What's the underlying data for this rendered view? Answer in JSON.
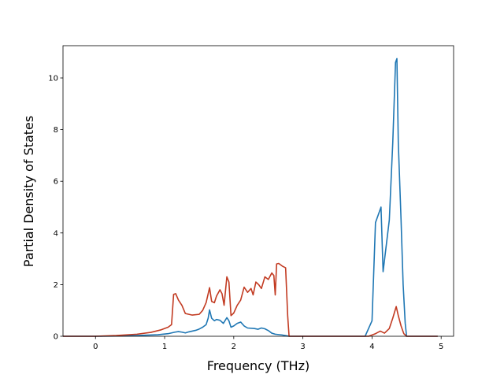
{
  "chart_data": {
    "type": "line",
    "title": "",
    "xlabel": "Frequency (THz)",
    "ylabel": "Partial Density of States",
    "xlim": [
      -0.47,
      5.18
    ],
    "ylim": [
      0,
      11.25
    ],
    "xticks": [
      0,
      1,
      2,
      3,
      4,
      5
    ],
    "yticks": [
      0,
      2,
      4,
      6,
      8,
      10
    ],
    "grid": false,
    "legend": "none",
    "series": [
      {
        "color": "#1f77b4",
        "points": [
          [
            -0.47,
            0
          ],
          [
            0.0,
            0
          ],
          [
            0.3,
            0.01
          ],
          [
            0.6,
            0.03
          ],
          [
            0.9,
            0.06
          ],
          [
            1.05,
            0.1
          ],
          [
            1.1,
            0.13
          ],
          [
            1.15,
            0.16
          ],
          [
            1.2,
            0.18
          ],
          [
            1.25,
            0.16
          ],
          [
            1.3,
            0.13
          ],
          [
            1.35,
            0.17
          ],
          [
            1.4,
            0.2
          ],
          [
            1.45,
            0.23
          ],
          [
            1.5,
            0.28
          ],
          [
            1.55,
            0.35
          ],
          [
            1.6,
            0.45
          ],
          [
            1.63,
            0.7
          ],
          [
            1.65,
            1.02
          ],
          [
            1.68,
            0.7
          ],
          [
            1.72,
            0.6
          ],
          [
            1.75,
            0.65
          ],
          [
            1.8,
            0.62
          ],
          [
            1.85,
            0.5
          ],
          [
            1.9,
            0.72
          ],
          [
            1.93,
            0.6
          ],
          [
            1.96,
            0.35
          ],
          [
            2.0,
            0.4
          ],
          [
            2.05,
            0.5
          ],
          [
            2.1,
            0.55
          ],
          [
            2.15,
            0.4
          ],
          [
            2.2,
            0.32
          ],
          [
            2.3,
            0.3
          ],
          [
            2.35,
            0.27
          ],
          [
            2.4,
            0.32
          ],
          [
            2.45,
            0.29
          ],
          [
            2.5,
            0.22
          ],
          [
            2.55,
            0.12
          ],
          [
            2.6,
            0.08
          ],
          [
            2.7,
            0.05
          ],
          [
            2.78,
            0.01
          ],
          [
            2.8,
            0
          ],
          [
            3.5,
            0
          ],
          [
            3.9,
            0
          ],
          [
            4.0,
            0.6
          ],
          [
            4.05,
            4.4
          ],
          [
            4.13,
            5.0
          ],
          [
            4.16,
            2.5
          ],
          [
            4.25,
            4.5
          ],
          [
            4.3,
            7.5
          ],
          [
            4.34,
            10.6
          ],
          [
            4.36,
            10.75
          ],
          [
            4.38,
            7.5
          ],
          [
            4.42,
            4.5
          ],
          [
            4.45,
            2.0
          ],
          [
            4.48,
            0.5
          ],
          [
            4.5,
            0
          ],
          [
            4.95,
            0
          ]
        ]
      },
      {
        "color": "#c23b22",
        "points": [
          [
            -0.47,
            0
          ],
          [
            0.0,
            0
          ],
          [
            0.3,
            0.03
          ],
          [
            0.6,
            0.08
          ],
          [
            0.8,
            0.15
          ],
          [
            0.95,
            0.25
          ],
          [
            1.05,
            0.35
          ],
          [
            1.1,
            0.45
          ],
          [
            1.13,
            1.62
          ],
          [
            1.16,
            1.65
          ],
          [
            1.2,
            1.4
          ],
          [
            1.25,
            1.2
          ],
          [
            1.3,
            0.88
          ],
          [
            1.4,
            0.82
          ],
          [
            1.5,
            0.85
          ],
          [
            1.55,
            1.0
          ],
          [
            1.6,
            1.3
          ],
          [
            1.65,
            1.88
          ],
          [
            1.68,
            1.35
          ],
          [
            1.72,
            1.3
          ],
          [
            1.75,
            1.55
          ],
          [
            1.8,
            1.8
          ],
          [
            1.83,
            1.65
          ],
          [
            1.86,
            1.2
          ],
          [
            1.9,
            2.3
          ],
          [
            1.93,
            2.1
          ],
          [
            1.96,
            0.8
          ],
          [
            2.0,
            0.9
          ],
          [
            2.05,
            1.2
          ],
          [
            2.1,
            1.4
          ],
          [
            2.15,
            1.9
          ],
          [
            2.2,
            1.7
          ],
          [
            2.25,
            1.85
          ],
          [
            2.28,
            1.6
          ],
          [
            2.32,
            2.1
          ],
          [
            2.36,
            2.0
          ],
          [
            2.4,
            1.85
          ],
          [
            2.45,
            2.3
          ],
          [
            2.5,
            2.2
          ],
          [
            2.55,
            2.45
          ],
          [
            2.58,
            2.35
          ],
          [
            2.6,
            1.6
          ],
          [
            2.62,
            2.8
          ],
          [
            2.65,
            2.82
          ],
          [
            2.7,
            2.72
          ],
          [
            2.75,
            2.65
          ],
          [
            2.78,
            0.8
          ],
          [
            2.8,
            0
          ],
          [
            3.5,
            0
          ],
          [
            3.95,
            0
          ],
          [
            4.05,
            0.1
          ],
          [
            4.12,
            0.2
          ],
          [
            4.18,
            0.12
          ],
          [
            4.25,
            0.3
          ],
          [
            4.3,
            0.7
          ],
          [
            4.35,
            1.15
          ],
          [
            4.38,
            0.8
          ],
          [
            4.42,
            0.4
          ],
          [
            4.46,
            0.1
          ],
          [
            4.5,
            0
          ],
          [
            4.95,
            0
          ]
        ]
      }
    ]
  }
}
